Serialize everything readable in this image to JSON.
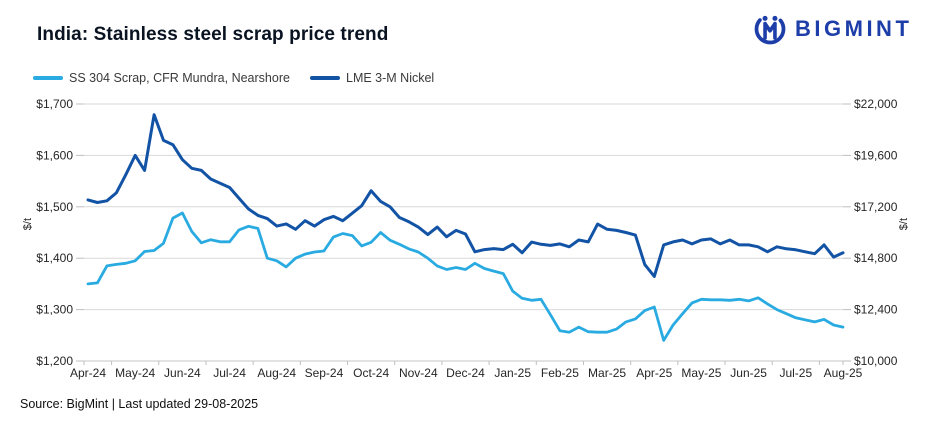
{
  "header": {
    "title": "India: Stainless steel scrap price trend",
    "logo_text": "BIGMINT",
    "logo_color": "#1d3ea9"
  },
  "footer": {
    "source": "Source: BigMint | Last updated 29-08-2025"
  },
  "chart_data": {
    "type": "line",
    "title": "India: Stainless steel scrap price trend",
    "legend_position": "top-left",
    "grid": "horizontal",
    "x_tick_labels": [
      "Apr-24",
      "May-24",
      "Jun-24",
      "Jul-24",
      "Aug-24",
      "Sep-24",
      "Oct-24",
      "Nov-24",
      "Dec-24",
      "Jan-25",
      "Feb-25",
      "Mar-25",
      "Apr-25",
      "May-25",
      "Jun-25",
      "Jul-25",
      "Aug-25"
    ],
    "left_axis": {
      "unit": "$/t",
      "range": [
        1200,
        1700
      ],
      "tick_labels": [
        "$1,700",
        "$1,600",
        "$1,500",
        "$1,400",
        "$1,300",
        "$1,200"
      ]
    },
    "right_axis": {
      "unit": "$/t",
      "range": [
        10000,
        22000
      ],
      "tick_labels": [
        "$22,000",
        "$19,600",
        "$17,200",
        "$14,800",
        "$12,400",
        "$10,000"
      ]
    },
    "style": {
      "grid_color": "#d9d9d9",
      "axis_line_color": "#c6c6c6",
      "tick_mark_color": "#bfbfbf",
      "tick_text_color": "#262626"
    },
    "series": [
      {
        "id": "ss304-scrap",
        "name": "SS 304 Scrap, CFR Mundra, Nearshore",
        "axis": "left",
        "color": "#29abe2",
        "width": 2.8,
        "values": [
          1350,
          1352,
          1385,
          1388,
          1390,
          1395,
          1413,
          1415,
          1429,
          1478,
          1488,
          1452,
          1430,
          1436,
          1432,
          1432,
          1455,
          1462,
          1458,
          1400,
          1395,
          1383,
          1400,
          1408,
          1412,
          1414,
          1441,
          1448,
          1444,
          1424,
          1431,
          1450,
          1435,
          1427,
          1418,
          1412,
          1400,
          1385,
          1378,
          1382,
          1378,
          1390,
          1380,
          1375,
          1370,
          1336,
          1322,
          1318,
          1320,
          1290,
          1259,
          1256,
          1266,
          1257,
          1256,
          1256,
          1262,
          1276,
          1282,
          1298,
          1305,
          1240,
          1270,
          1292,
          1313,
          1320,
          1319,
          1319,
          1318,
          1320,
          1317,
          1323,
          1311,
          1300,
          1292,
          1284,
          1280,
          1276,
          1281,
          1270,
          1266
        ]
      },
      {
        "id": "lme-nickel",
        "name": "LME 3-M Nickel",
        "axis": "right",
        "color": "#1253a5",
        "width": 3,
        "values": [
          17520,
          17400,
          17480,
          17850,
          18700,
          19600,
          18900,
          21500,
          20300,
          20100,
          19400,
          19000,
          18900,
          18500,
          18300,
          18100,
          17600,
          17100,
          16800,
          16650,
          16300,
          16400,
          16150,
          16550,
          16300,
          16600,
          16750,
          16550,
          16900,
          17250,
          17950,
          17450,
          17200,
          16700,
          16500,
          16250,
          15900,
          16250,
          15800,
          16100,
          15930,
          15100,
          15200,
          15250,
          15200,
          15450,
          15050,
          15550,
          15450,
          15400,
          15470,
          15330,
          15650,
          15560,
          16390,
          16150,
          16100,
          16000,
          15880,
          14500,
          13950,
          15420,
          15560,
          15650,
          15470,
          15650,
          15700,
          15470,
          15650,
          15420,
          15420,
          15330,
          15100,
          15330,
          15240,
          15190,
          15100,
          15010,
          15420,
          14850,
          15050
        ]
      }
    ]
  }
}
